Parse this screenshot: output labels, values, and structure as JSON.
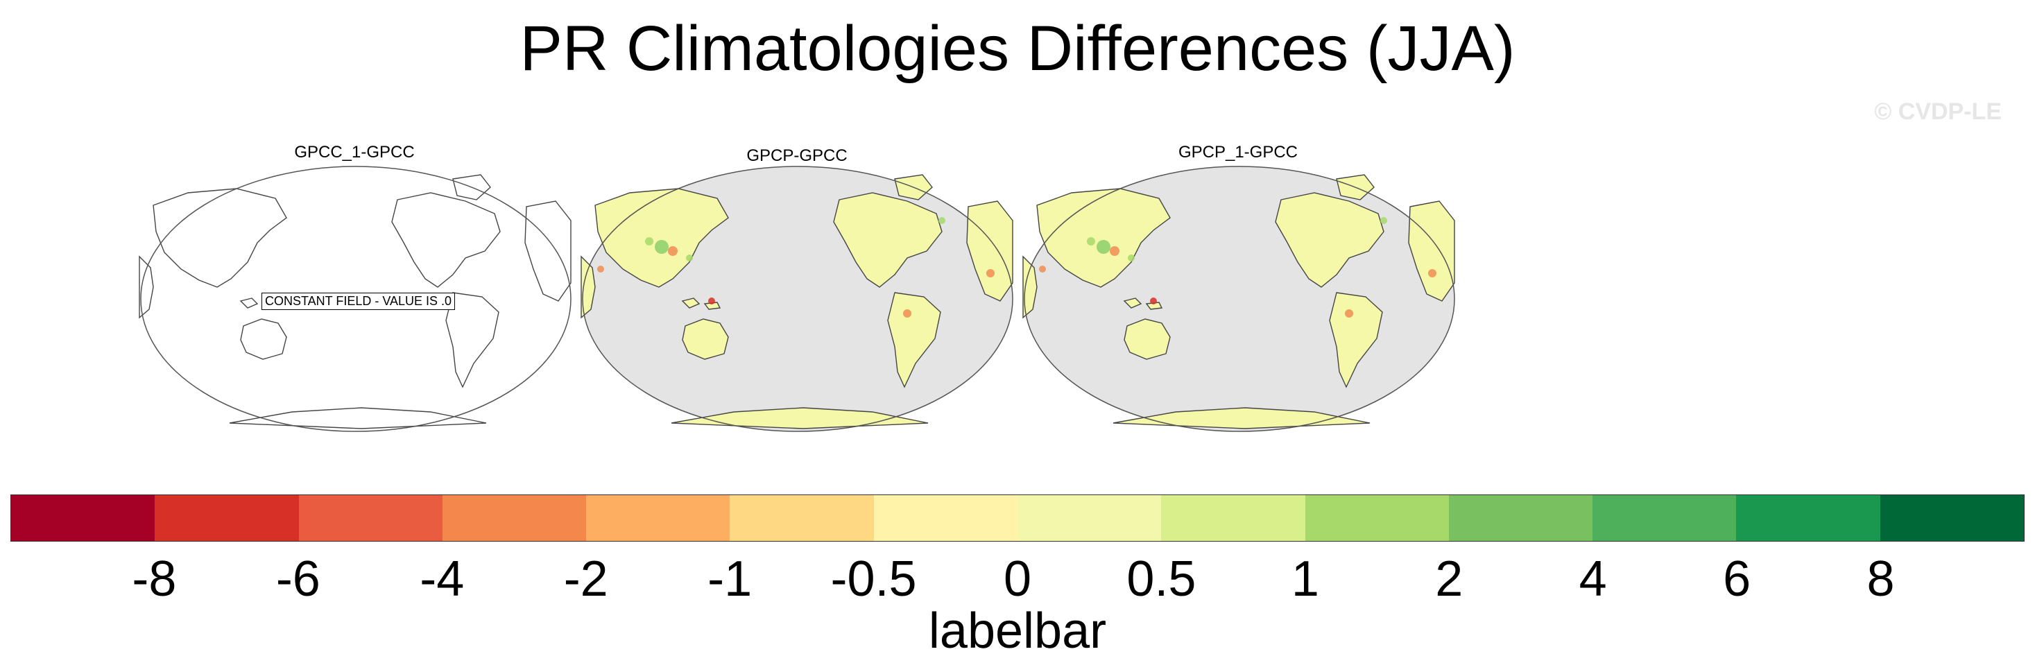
{
  "title": "PR Climatologies Differences (JJA)",
  "watermark": "© CVDP-LE",
  "chart_data": {
    "type": "heatmap",
    "title": "PR Climatologies Differences (JJA)",
    "panels": [
      {
        "title": "GPCC_1-GPCC",
        "annotation": "CONSTANT FIELD - VALUE IS .0",
        "constant_value": 0
      },
      {
        "title": "GPCP-GPCC"
      },
      {
        "title": "GPCP_1-GPCC"
      }
    ],
    "colorbar": {
      "label": "labelbar",
      "levels": [
        "-8",
        "-6",
        "-4",
        "-2",
        "-1",
        "-0.5",
        "0",
        "0.5",
        "1",
        "2",
        "4",
        "6",
        "8"
      ],
      "colors": [
        "#a50026",
        "#d73027",
        "#e95c3f",
        "#f4874b",
        "#fdae61",
        "#fed883",
        "#fff3aa",
        "#f2f7ac",
        "#d9ef8b",
        "#a6d96a",
        "#78c060",
        "#4eb05b",
        "#1a9850",
        "#006837"
      ]
    }
  }
}
